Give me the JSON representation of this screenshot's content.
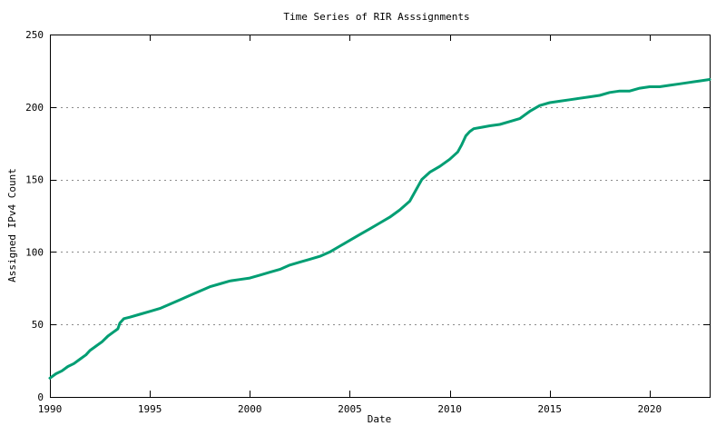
{
  "colors": {
    "line": "#009e73",
    "grid": "#8c8c8c",
    "axis": "#000000",
    "background": "#ffffff",
    "text": "#000000"
  },
  "chart_data": {
    "type": "line",
    "title": "Time Series of RIR Asssignments",
    "xlabel": "Date",
    "ylabel": "Assigned IPv4 Count",
    "xlim": [
      1990,
      2023
    ],
    "ylim": [
      0,
      250
    ],
    "xticks": [
      1990,
      1995,
      2000,
      2005,
      2010,
      2015,
      2020
    ],
    "yticks": [
      0,
      50,
      100,
      150,
      200,
      250
    ],
    "grid": "horizontal-dotted",
    "legend": "none",
    "series": [
      {
        "name": "Assigned IPv4 Count",
        "color": "#009e73",
        "x": [
          1990.0,
          1990.3,
          1990.6,
          1990.9,
          1991.2,
          1991.5,
          1991.8,
          1992.0,
          1992.3,
          1992.6,
          1992.9,
          1993.2,
          1993.4,
          1993.5,
          1993.7,
          1994.0,
          1994.5,
          1995.0,
          1995.5,
          1996.0,
          1996.5,
          1997.0,
          1997.5,
          1998.0,
          1998.5,
          1999.0,
          1999.5,
          2000.0,
          2000.5,
          2001.0,
          2001.5,
          2002.0,
          2002.5,
          2003.0,
          2003.5,
          2004.0,
          2004.5,
          2005.0,
          2005.5,
          2006.0,
          2006.5,
          2007.0,
          2007.5,
          2008.0,
          2008.6,
          2009.0,
          2009.5,
          2010.0,
          2010.4,
          2010.6,
          2010.8,
          2011.0,
          2011.2,
          2011.6,
          2012.0,
          2012.5,
          2013.0,
          2013.5,
          2014.0,
          2014.5,
          2015.0,
          2015.5,
          2016.0,
          2016.5,
          2017.0,
          2017.5,
          2018.0,
          2018.5,
          2019.0,
          2019.5,
          2020.0,
          2020.5,
          2021.0,
          2021.5,
          2022.0,
          2022.5,
          2023.0
        ],
        "y": [
          13,
          16,
          18,
          21,
          23,
          26,
          29,
          32,
          35,
          38,
          42,
          45,
          47,
          51,
          54,
          55,
          57,
          59,
          61,
          64,
          67,
          70,
          73,
          76,
          78,
          80,
          81,
          82,
          84,
          86,
          88,
          91,
          93,
          95,
          97,
          100,
          104,
          108,
          112,
          116,
          120,
          124,
          129,
          135,
          150,
          155,
          159,
          164,
          169,
          174,
          180,
          183,
          185,
          186,
          187,
          188,
          190,
          192,
          197,
          201,
          203,
          204,
          205,
          206,
          207,
          208,
          210,
          211,
          211,
          213,
          214,
          214,
          215,
          216,
          217,
          218,
          219
        ]
      }
    ]
  }
}
